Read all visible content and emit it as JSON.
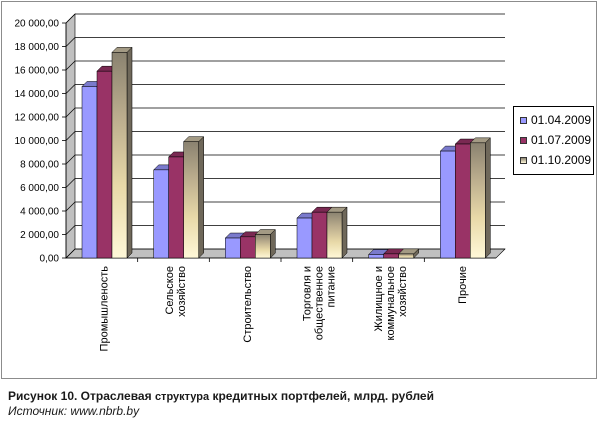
{
  "chart_data": {
    "type": "bar",
    "categories": [
      [
        "Промышленость"
      ],
      [
        "Сельское",
        "хозяйство"
      ],
      [
        "Строительство"
      ],
      [
        "Торговля и",
        "общественное",
        "питание"
      ],
      [
        "Жилищное и",
        "коммунальное",
        "хозяйство"
      ],
      [
        "Прочие"
      ]
    ],
    "series": [
      {
        "name": "01.04.2009",
        "color": "#9999ff",
        "values": [
          14600,
          7500,
          1700,
          3400,
          300,
          9100
        ]
      },
      {
        "name": "01.07.2009",
        "color": "#993366",
        "values": [
          15900,
          8600,
          1800,
          3900,
          350,
          9700
        ]
      },
      {
        "name": "01.10.2009",
        "color": "#c9c0a0",
        "values": [
          17500,
          9900,
          2000,
          3900,
          350,
          9800
        ]
      }
    ],
    "yticks": [
      "0,00",
      "2 000,00",
      "4 000,00",
      "6 000,00",
      "8 000,00",
      "10 000,00",
      "12 000,00",
      "14 000,00",
      "16 000,00",
      "18 000,00",
      "20 000,00"
    ],
    "ylim": [
      0,
      20000
    ],
    "ystep": 2000,
    "grid": true,
    "legend_position": "right"
  },
  "caption": {
    "bold": "Рисунок 10. Отраслевая",
    "small": "структура",
    "rest": "кредитных портфелей, млрд. рублей"
  },
  "source": "Источник: www.nbrb.by"
}
